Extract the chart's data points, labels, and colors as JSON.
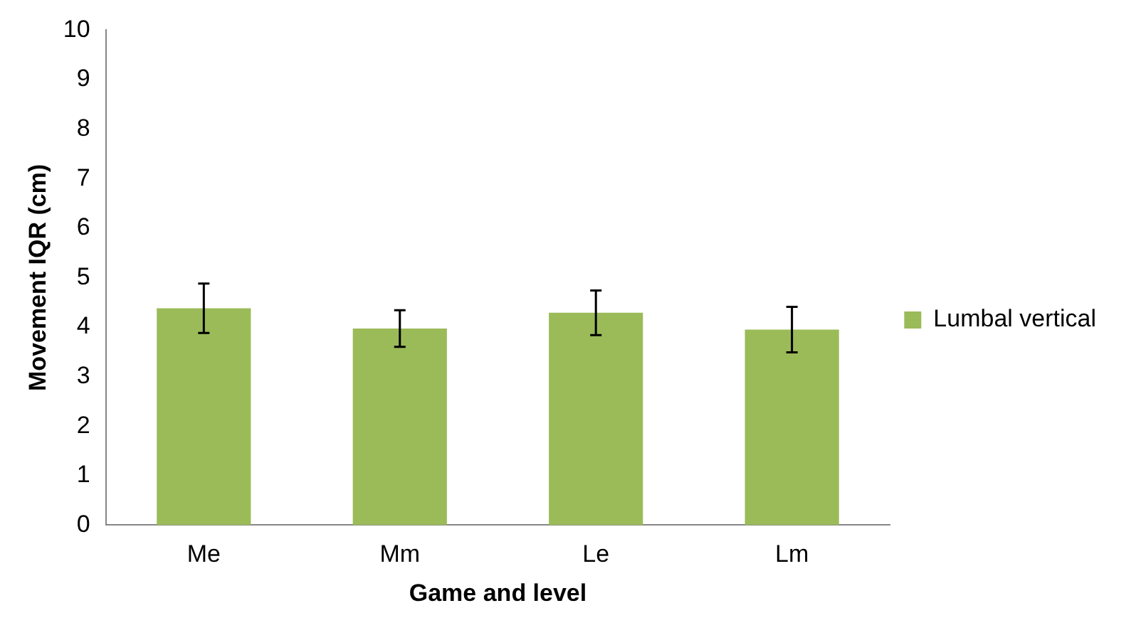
{
  "chart_data": {
    "type": "bar",
    "xlabel": "Game and level",
    "ylabel": "Movement IQR (cm)",
    "categories": [
      "Me",
      "Mm",
      "Le",
      "Lm"
    ],
    "series": [
      {
        "name": "Lumbal vertical",
        "color": "#9bbb59",
        "values": [
          4.38,
          3.97,
          4.29,
          3.95
        ],
        "errors": [
          0.5,
          0.37,
          0.45,
          0.46
        ]
      }
    ],
    "ylim": [
      0,
      10
    ],
    "yticks": [
      0,
      1,
      2,
      3,
      4,
      5,
      6,
      7,
      8,
      9,
      10
    ],
    "grid": false,
    "legend": "right"
  }
}
